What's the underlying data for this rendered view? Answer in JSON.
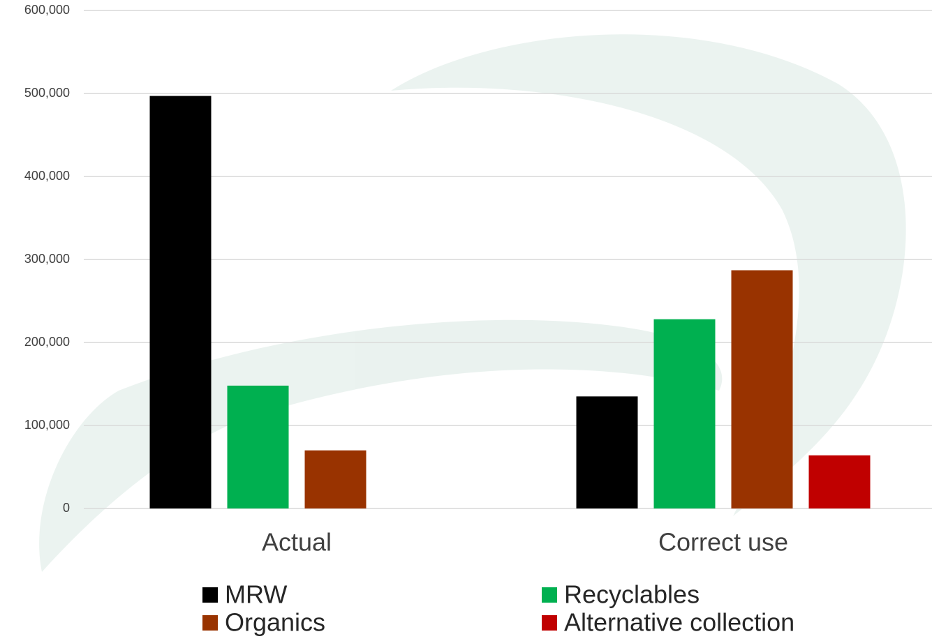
{
  "chart_data": {
    "type": "bar",
    "categories": [
      "Actual",
      "Correct use"
    ],
    "series": [
      {
        "name": "MRW",
        "color": "#000000",
        "values": [
          497000,
          135000
        ]
      },
      {
        "name": "Recyclables",
        "color": "#00b050",
        "values": [
          148000,
          228000
        ]
      },
      {
        "name": "Organics",
        "color": "#993300",
        "values": [
          70000,
          287000
        ]
      },
      {
        "name": "Alternative collection",
        "color": "#c00000",
        "values": [
          null,
          64000
        ]
      }
    ],
    "ylim": [
      0,
      600000
    ],
    "yticks": [
      0,
      {
        "value": 100000,
        "label": "100,000"
      },
      {
        "value": 200000,
        "label": "200,000"
      },
      {
        "value": 300000,
        "label": "300,000"
      },
      {
        "value": 400000,
        "label": "400,000"
      },
      {
        "value": 500000,
        "label": "500,000"
      },
      {
        "value": 600000,
        "label": "600,000"
      }
    ],
    "grid": true
  }
}
